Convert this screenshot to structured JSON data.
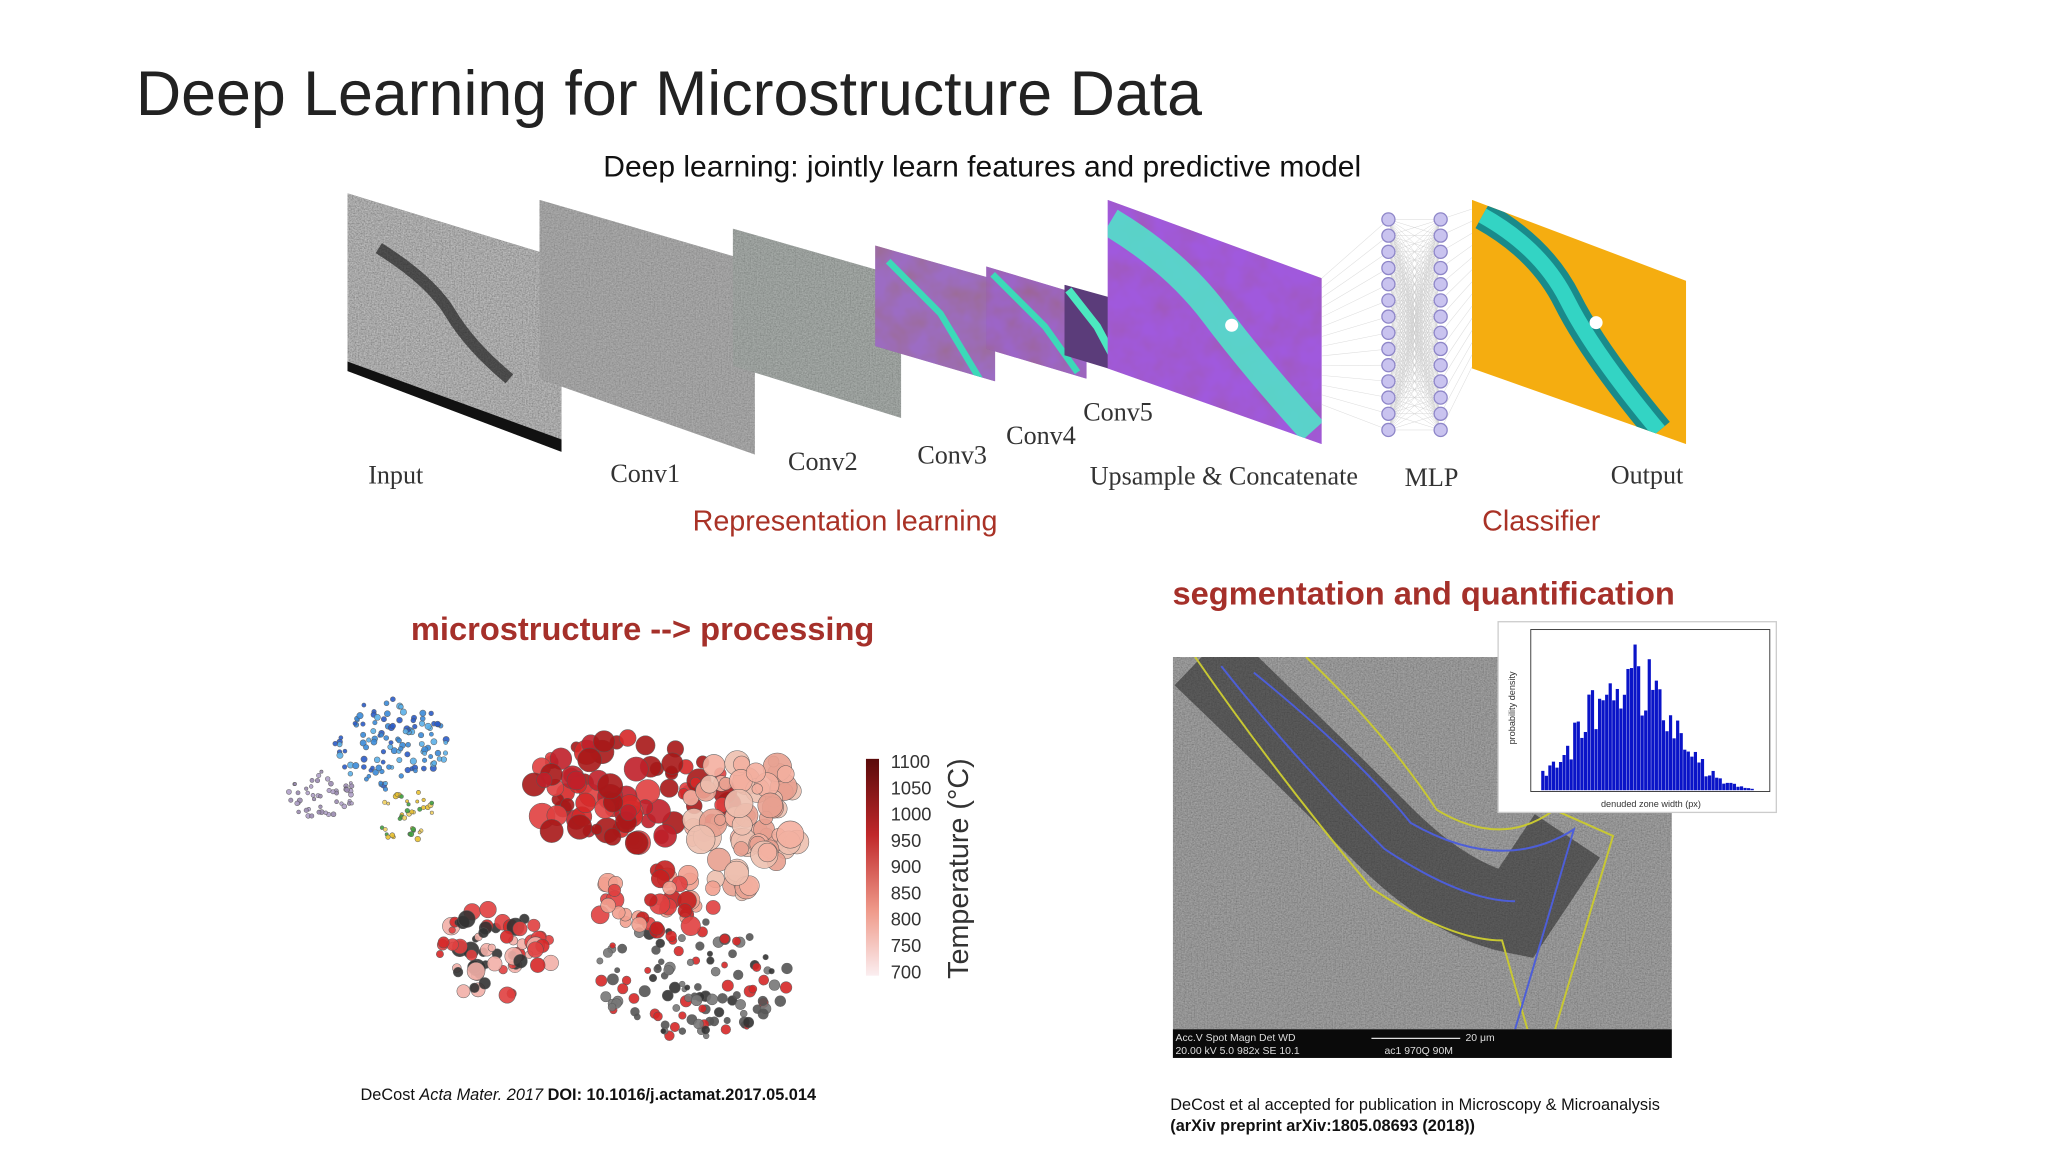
{
  "title": "Deep Learning for Microstructure Data",
  "pipeline": {
    "caption": "Deep learning: jointly learn features and predictive model",
    "stages": [
      "Input",
      "Conv1",
      "Conv2",
      "Conv3",
      "Conv4",
      "Conv5",
      "Upsample & Concatenate",
      "MLP",
      "Output"
    ],
    "groups": [
      "Representation learning",
      "Classifier"
    ]
  },
  "left_panel": {
    "heading": "microstructure --> processing",
    "colorbar": {
      "label": "Temperature (°C)",
      "ticks": [
        1100,
        1050,
        1000,
        950,
        900,
        850,
        800,
        750,
        700
      ]
    },
    "citation": [
      "DeCost ",
      "Acta Mater. 2017",
      " DOI: 10.1016/j.actamat.2017.05.014"
    ]
  },
  "right_panel": {
    "heading": "segmentation and quantification",
    "histogram": {
      "ylabel": "probability density",
      "xlabel": "denuded zone width (px)"
    },
    "micrograph": {
      "info": [
        "Acc.V  Spot  Magn  Det  WD",
        "20.00 kV  5.0  982x  SE  10.1",
        "20 μm",
        "ac1 970Q 90M"
      ]
    },
    "citation": [
      "DeCost et al accepted for publication in Microscopy & Microanalysis",
      "(arXiv preprint arXiv:1805.08693 (2018))"
    ]
  }
}
